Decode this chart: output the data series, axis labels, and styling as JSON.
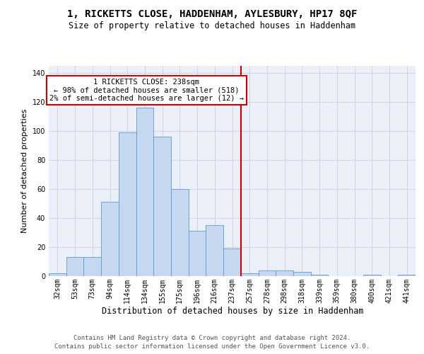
{
  "title1": "1, RICKETTS CLOSE, HADDENHAM, AYLESBURY, HP17 8QF",
  "title2": "Size of property relative to detached houses in Haddenham",
  "xlabel": "Distribution of detached houses by size in Haddenham",
  "ylabel": "Number of detached properties",
  "footer1": "Contains HM Land Registry data © Crown copyright and database right 2024.",
  "footer2": "Contains public sector information licensed under the Open Government Licence v3.0.",
  "categories": [
    "32sqm",
    "53sqm",
    "73sqm",
    "94sqm",
    "114sqm",
    "134sqm",
    "155sqm",
    "175sqm",
    "196sqm",
    "216sqm",
    "237sqm",
    "257sqm",
    "278sqm",
    "298sqm",
    "318sqm",
    "339sqm",
    "359sqm",
    "380sqm",
    "400sqm",
    "421sqm",
    "441sqm"
  ],
  "values": [
    2,
    13,
    13,
    51,
    99,
    116,
    96,
    60,
    31,
    35,
    19,
    2,
    4,
    4,
    3,
    1,
    0,
    0,
    1,
    0,
    1
  ],
  "bar_color": "#c5d8f0",
  "bar_edge_color": "#5b9bd5",
  "vline_color": "#cc0000",
  "vline_x": 10.5,
  "annotation_line1": "1 RICKETTS CLOSE: 238sqm",
  "annotation_line2": "← 98% of detached houses are smaller (518)",
  "annotation_line3": "2% of semi-detached houses are larger (12) →",
  "ylim_max": 145,
  "yticks": [
    0,
    20,
    40,
    60,
    80,
    100,
    120,
    140
  ],
  "grid_color": "#cdd5e5",
  "bg_color": "#eaeff8",
  "title1_fontsize": 10,
  "title2_fontsize": 8.5,
  "tick_fontsize": 7,
  "ylabel_fontsize": 8,
  "xlabel_fontsize": 8.5,
  "footer_fontsize": 6.5,
  "ann_fontsize": 7.5
}
